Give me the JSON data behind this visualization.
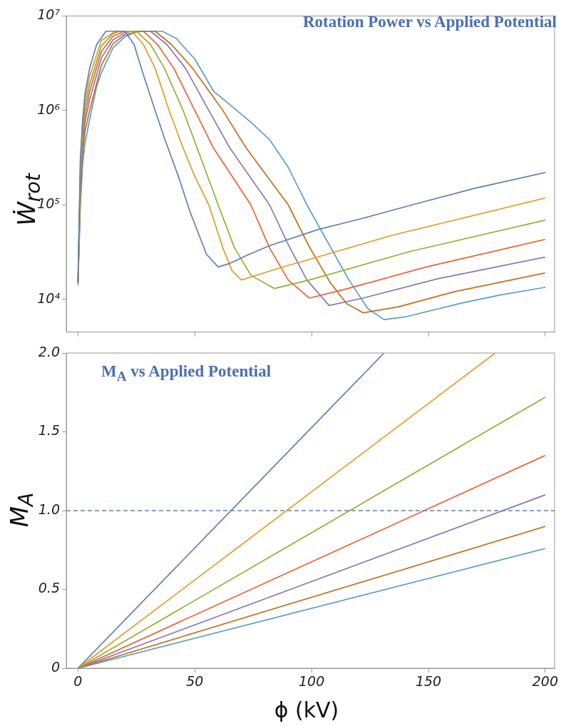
{
  "chart_data": [
    {
      "type": "line",
      "title": "Rotation Power vs Applied Potential",
      "ylabel": "Ẇ$_{rot}$",
      "log": "y",
      "tick_labels": "y",
      "xlim": [
        -5,
        204
      ],
      "xticks": [
        0,
        50,
        100,
        150,
        200
      ],
      "ylim": [
        4500,
        10000000
      ],
      "yticks": [
        {
          "value": 10000,
          "label": "10⁴"
        },
        {
          "value": 100000,
          "label": "10⁵"
        },
        {
          "value": 1000000,
          "label": "10⁶"
        },
        {
          "value": 10000000,
          "label": "10⁷"
        }
      ],
      "series": [
        {
          "color": "#5E81B5",
          "x": [
            0,
            1,
            2,
            3,
            5,
            8,
            12,
            20,
            24,
            27.5,
            33,
            37.5,
            43,
            48,
            55,
            60,
            65,
            72,
            82,
            103,
            120,
            143,
            170,
            200
          ],
          "values": [
            15000,
            300000,
            800000,
            1500000,
            2800000,
            5000000,
            6900000,
            6900000,
            5000000,
            2600000,
            1000000,
            470000,
            200000,
            84000,
            30000,
            22000,
            24000,
            29000,
            37000,
            55000,
            70000,
            100000,
            150000,
            220000
          ]
        },
        {
          "color": "#E19C24",
          "x": [
            0,
            1,
            2,
            3,
            5,
            10,
            16,
            23,
            28,
            33,
            39,
            45,
            50,
            56,
            62,
            66,
            70,
            85,
            135,
            200
          ],
          "values": [
            15000,
            250000,
            700000,
            1300000,
            2300000,
            5500000,
            6900000,
            6900000,
            5000000,
            2800000,
            1000000,
            400000,
            200000,
            100000,
            35000,
            20000,
            16000,
            21000,
            48000,
            118000
          ]
        },
        {
          "color": "#8FB131",
          "x": [
            0,
            1,
            2,
            3,
            5,
            10,
            15,
            18,
            25,
            31,
            37,
            45,
            51,
            60,
            67,
            74,
            84,
            99,
            142,
            200
          ],
          "values": [
            15000,
            200000,
            600000,
            1100000,
            1900000,
            4800000,
            6500000,
            6900000,
            6900000,
            5000000,
            2800000,
            1000000,
            400000,
            100000,
            35000,
            18000,
            13000,
            16000,
            32000,
            69000
          ]
        },
        {
          "color": "#EB6235",
          "x": [
            0,
            1,
            2,
            3,
            5,
            10,
            15,
            20,
            28,
            34,
            41,
            50,
            58,
            74,
            82,
            90,
            99,
            114,
            149,
            200
          ],
          "values": [
            15000,
            170000,
            500000,
            900000,
            1600000,
            4200000,
            6100000,
            6900000,
            6900000,
            5000000,
            2800000,
            1000000,
            400000,
            100000,
            35000,
            16000,
            10300,
            12700,
            22000,
            43000
          ]
        },
        {
          "color": "#8778B6",
          "x": [
            0,
            1,
            2,
            3,
            5,
            10,
            15,
            20,
            23,
            31,
            38,
            46,
            56,
            65,
            82,
            90,
            98,
            107.5,
            122,
            154,
            200
          ],
          "values": [
            15000,
            130000,
            420000,
            750000,
            1300000,
            3600000,
            5600000,
            6600000,
            6900000,
            6900000,
            5000000,
            2800000,
            1000000,
            400000,
            100000,
            38000,
            16000,
            8600,
            10300,
            16500,
            28000
          ]
        },
        {
          "color": "#C56E1A",
          "x": [
            0,
            1,
            2,
            3,
            5,
            10,
            15,
            20,
            26,
            33,
            40,
            49,
            62,
            72,
            90,
            99,
            108,
            115,
            122,
            137,
            161,
            200
          ],
          "values": [
            15000,
            110000,
            350000,
            600000,
            1000000,
            3000000,
            5100000,
            6300000,
            6900000,
            6900000,
            5000000,
            2800000,
            1000000,
            400000,
            100000,
            36000,
            15000,
            9000,
            7200,
            8300,
            12000,
            19000
          ]
        },
        {
          "color": "#5D9EC7",
          "x": [
            0,
            1,
            2,
            3,
            5,
            8,
            10,
            15,
            20,
            25,
            30,
            36,
            42,
            50,
            58,
            66,
            74,
            82,
            90,
            98,
            108,
            116,
            124,
            131,
            140,
            164,
            180,
            200
          ],
          "values": [
            14000,
            100000,
            270000,
            450000,
            800000,
            1800000,
            2500000,
            4600000,
            6000000,
            6800000,
            6900000,
            6900000,
            5800000,
            3500000,
            1600000,
            1100000,
            750000,
            490000,
            250000,
            100000,
            36000,
            16000,
            8000,
            6100,
            6500,
            9100,
            11000,
            13400
          ]
        }
      ]
    },
    {
      "type": "line",
      "title": "M$_{A}$ vs Applied Potential",
      "ylabel": "M$_{A}$",
      "xlabel": "ϕ (kV)",
      "xlim": [
        -5,
        204
      ],
      "xticks": [
        0,
        50,
        100,
        150,
        200
      ],
      "ylim": [
        0,
        2
      ],
      "yticks": [
        0,
        0.5,
        {
          "value": 1,
          "label": "1.0"
        },
        1.5,
        {
          "value": 2,
          "label": "2.0"
        }
      ],
      "ref_lines": [
        {
          "axis": "y",
          "value": 1,
          "color": "#5E81B5",
          "line_style": "dashed"
        }
      ],
      "series": [
        {
          "color": "#5E81B5",
          "x": [
            0,
            131
          ],
          "values": [
            0,
            2
          ]
        },
        {
          "color": "#E19C24",
          "x": [
            0,
            178.6
          ],
          "values": [
            0,
            2
          ]
        },
        {
          "color": "#8FB131",
          "x": [
            0,
            200
          ],
          "values": [
            0,
            1.72
          ]
        },
        {
          "color": "#EB6235",
          "x": [
            0,
            200
          ],
          "values": [
            0,
            1.35
          ]
        },
        {
          "color": "#8778B6",
          "x": [
            0,
            200
          ],
          "values": [
            0,
            1.1
          ]
        },
        {
          "color": "#C56E1A",
          "x": [
            0,
            200
          ],
          "values": [
            0,
            0.9
          ]
        },
        {
          "color": "#5D9EC7",
          "x": [
            0,
            200
          ],
          "values": [
            0,
            0.76
          ]
        }
      ]
    }
  ]
}
